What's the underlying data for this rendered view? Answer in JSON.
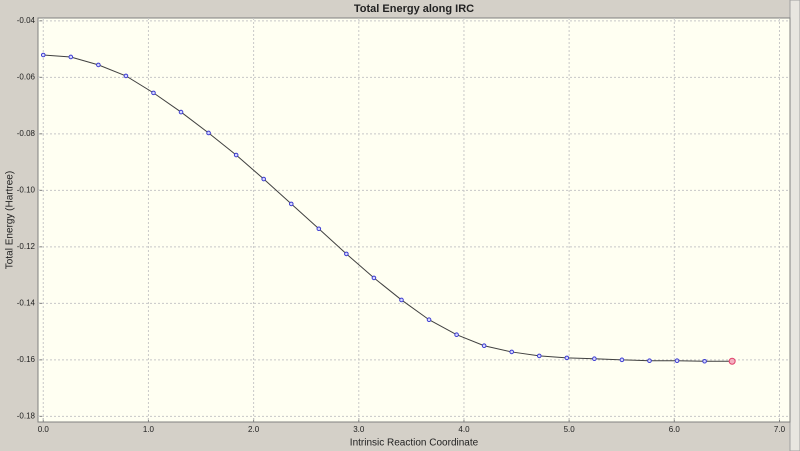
{
  "chart_data": {
    "type": "line",
    "title": "Total Energy along IRC",
    "x_label": "Intrinsic Reaction Coordinate",
    "y_label": "Total Energy (Hartree)",
    "x": [
      0,
      0.262,
      0.524,
      0.786,
      1.048,
      1.31,
      1.572,
      1.834,
      2.096,
      2.358,
      2.62,
      2.882,
      3.144,
      3.406,
      3.668,
      3.93,
      4.192,
      4.454,
      4.716,
      4.978,
      5.24,
      5.502,
      5.764,
      6.026,
      6.288,
      6.55
    ],
    "values": [
      -0.0521,
      -0.0528,
      -0.0556,
      -0.0595,
      -0.0655,
      -0.0723,
      -0.0797,
      -0.0875,
      -0.096,
      -0.1048,
      -0.1136,
      -0.1225,
      -0.131,
      -0.1388,
      -0.1458,
      -0.1511,
      -0.155,
      -0.1572,
      -0.1586,
      -0.1593,
      -0.1596,
      -0.16,
      -0.1603,
      -0.1603,
      -0.1605,
      -0.1605
    ],
    "color": "#404040",
    "marker_color": "#3c3cd0",
    "highlight_color": "#e0406a",
    "xlim": [
      -0.05,
      7.1
    ],
    "xticks": [
      {
        "value": 0,
        "label": "0.0"
      },
      {
        "value": 1,
        "label": "1.0"
      },
      {
        "value": 2,
        "label": "2.0"
      },
      {
        "value": 3,
        "label": "3.0"
      },
      {
        "value": 4,
        "label": "4.0"
      },
      {
        "value": 5,
        "label": "5.0"
      },
      {
        "value": 6,
        "label": "6.0"
      },
      {
        "value": 7,
        "label": "7.0"
      }
    ],
    "ylim": [
      -0.182,
      -0.039
    ],
    "yticks": [
      -0.04,
      -0.06,
      -0.08,
      {
        "value": -0.1,
        "label": "-0.10"
      },
      -0.12,
      -0.14,
      -0.16,
      -0.18
    ],
    "grid": true
  }
}
